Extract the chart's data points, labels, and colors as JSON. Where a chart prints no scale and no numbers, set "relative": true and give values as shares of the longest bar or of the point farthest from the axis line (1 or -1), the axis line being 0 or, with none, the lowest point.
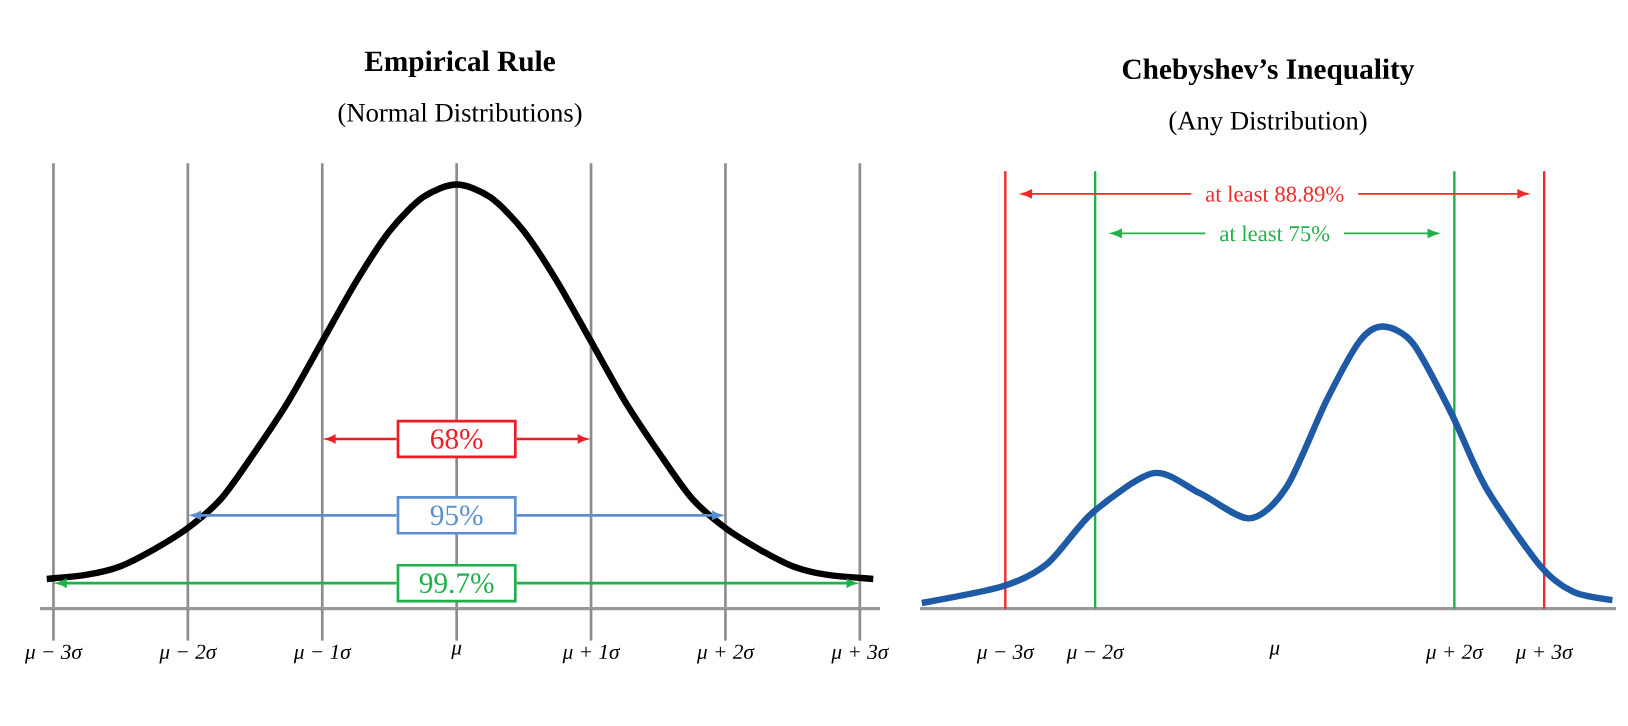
{
  "chart_data": [
    {
      "type": "line",
      "title": "Empirical Rule",
      "subtitle": "(Normal Distributions)",
      "relative": true,
      "grid": "x",
      "tick_labels": "x",
      "xlim": [
        -3.1,
        3.15
      ],
      "xticks": [
        {
          "value": -3,
          "label": "μ − 3σ"
        },
        {
          "value": -2,
          "label": "μ − 2σ"
        },
        {
          "value": -1,
          "label": "μ − 1σ"
        },
        {
          "value": 0,
          "label": "μ"
        },
        {
          "value": 1,
          "label": "μ + 1σ"
        },
        {
          "value": 2,
          "label": "μ + 2σ"
        },
        {
          "value": 3,
          "label": "μ + 3σ"
        }
      ],
      "series": [
        {
          "color": "#000000",
          "x": [
            -3.05,
            -2.75,
            -2.5,
            -2.25,
            -2,
            -1.75,
            -1.5,
            -1.25,
            -1,
            -0.75,
            -0.5,
            -0.25,
            0,
            0.25,
            0.5,
            0.75,
            1,
            1.25,
            1.5,
            1.75,
            2,
            2.25,
            2.5,
            2.75,
            3.1
          ],
          "values": [
            0.07,
            0.08,
            0.1,
            0.14,
            0.19,
            0.26,
            0.37,
            0.49,
            0.63,
            0.77,
            0.89,
            0.97,
            1,
            0.97,
            0.89,
            0.77,
            0.63,
            0.49,
            0.37,
            0.26,
            0.19,
            0.14,
            0.1,
            0.08,
            0.07
          ]
        }
      ],
      "annotations": [
        "68%",
        "95%",
        "99.7%"
      ]
    },
    {
      "type": "line",
      "title": "Chebyshev’s Inequality",
      "subtitle": "(Any Distribution)",
      "relative": true,
      "tick_labels": "x",
      "xlim": [
        -3.95,
        3.8
      ],
      "xticks": [
        {
          "value": -3,
          "label": "μ − 3σ"
        },
        {
          "value": -2,
          "label": "μ − 2σ"
        },
        {
          "value": 0,
          "label": "μ"
        },
        {
          "value": 2,
          "label": "μ + 2σ"
        },
        {
          "value": 3,
          "label": "μ + 3σ"
        }
      ],
      "series": [
        {
          "color": "#1f5aa6",
          "x": [
            -3.93,
            -3.02,
            -2.53,
            -2.03,
            -1.35,
            -0.84,
            -0.28,
            0.13,
            0.58,
            0.95,
            1.21,
            1.54,
            1.97,
            2.35,
            2.96,
            3.32,
            3.76
          ],
          "values": [
            0.02,
            0.08,
            0.16,
            0.34,
            0.48,
            0.41,
            0.32,
            0.43,
            0.74,
            0.95,
            1,
            0.94,
            0.69,
            0.43,
            0.15,
            0.06,
            0.03
          ]
        }
      ],
      "ref_lines": [
        {
          "axis": "x",
          "value": -3,
          "color": "#ee2a2a"
        },
        {
          "axis": "x",
          "value": 3,
          "color": "#ee2a2a"
        },
        {
          "axis": "x",
          "value": -2,
          "color": "#22b04b"
        },
        {
          "axis": "x",
          "value": 2,
          "color": "#22b04b"
        }
      ],
      "annotations": [
        "at least 88.89%",
        "at least 75%"
      ]
    }
  ]
}
